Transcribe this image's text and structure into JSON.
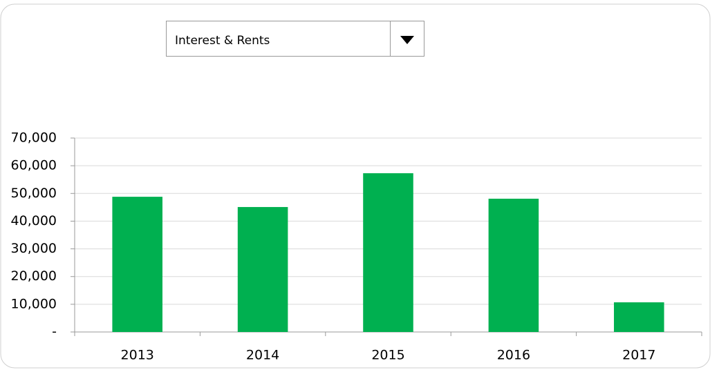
{
  "dropdown": {
    "selected": "Interest & Rents"
  },
  "chart_data": {
    "type": "bar",
    "categories": [
      "2013",
      "2014",
      "2015",
      "2016",
      "2017"
    ],
    "values": [
      48800,
      45100,
      57300,
      48100,
      10700
    ],
    "color": "#00b050",
    "ylim": [
      0,
      70000
    ],
    "yticks": [
      {
        "value": 0,
        "label": "-"
      },
      {
        "value": 10000,
        "label": "10,000"
      },
      {
        "value": 20000,
        "label": "20,000"
      },
      {
        "value": 30000,
        "label": "30,000"
      },
      {
        "value": 40000,
        "label": "40,000"
      },
      {
        "value": 50000,
        "label": "50,000"
      },
      {
        "value": 60000,
        "label": "60,000"
      },
      {
        "value": 70000,
        "label": "70,000"
      }
    ],
    "grid": true
  }
}
